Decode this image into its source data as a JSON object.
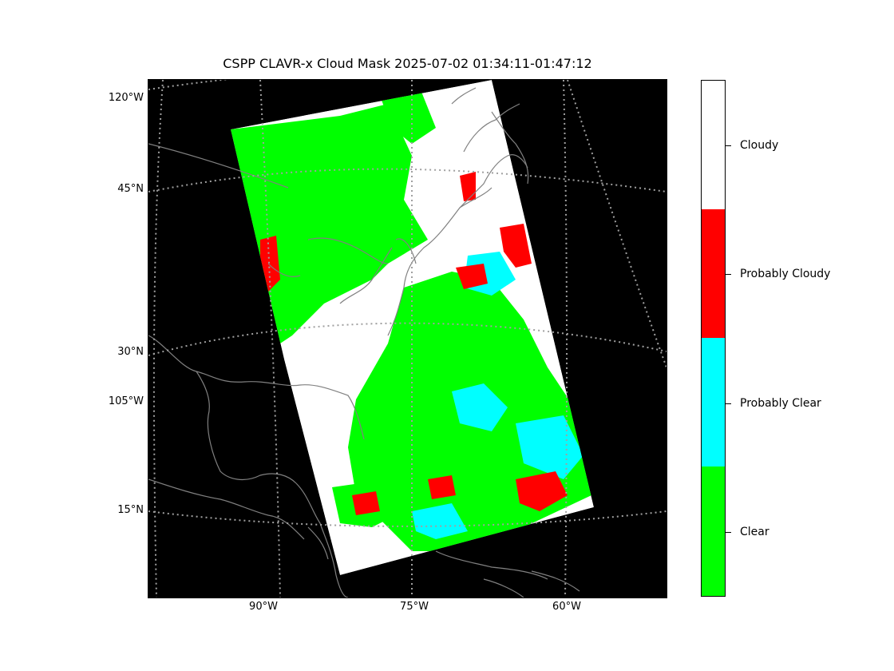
{
  "title": "CSPP CLAVR-x Cloud Mask 2025-07-02 01:34:11-01:47:12",
  "lat_labels": [
    "120°W",
    "45°N",
    "30°N",
    "105°W",
    "15°N"
  ],
  "lon_labels": [
    "90°W",
    "75°W",
    "60°W"
  ],
  "colorbar": {
    "categories": [
      {
        "label": "Cloudy",
        "color": "#ffffff"
      },
      {
        "label": "Probably Cloudy",
        "color": "#ff0000"
      },
      {
        "label": "Probably Clear",
        "color": "#00ffff"
      },
      {
        "label": "Clear",
        "color": "#00ff00"
      }
    ]
  },
  "colors": {
    "background": "#000000",
    "coastline": "#808080",
    "gridline": "#a0a0a0"
  }
}
